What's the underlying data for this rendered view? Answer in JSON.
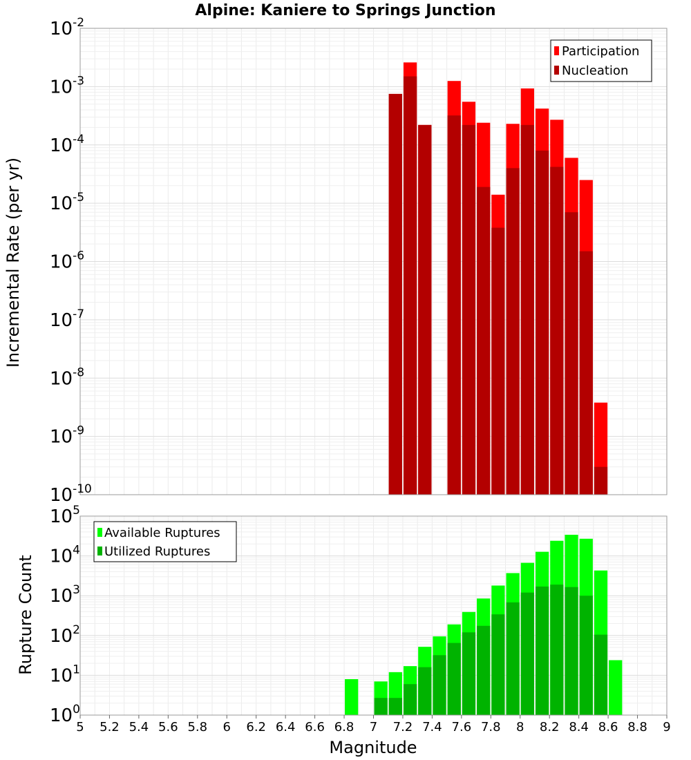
{
  "chart_data": [
    {
      "type": "bar",
      "title": "Alpine: Kaniere to Springs Junction",
      "ylabel": "Incremental Rate (per yr)",
      "yscale": "log",
      "ylim": [
        1e-10,
        0.01
      ],
      "xlim": [
        5,
        9
      ],
      "bin_width": 0.1,
      "y_ticks": [
        {
          "base": "10",
          "exp": "-10",
          "value": 1e-10
        },
        {
          "base": "10",
          "exp": "-9",
          "value": 1e-09
        },
        {
          "base": "10",
          "exp": "-8",
          "value": 1e-08
        },
        {
          "base": "10",
          "exp": "-7",
          "value": 1e-07
        },
        {
          "base": "10",
          "exp": "-6",
          "value": 1e-06
        },
        {
          "base": "10",
          "exp": "-5",
          "value": 1e-05
        },
        {
          "base": "10",
          "exp": "-4",
          "value": 0.0001
        },
        {
          "base": "10",
          "exp": "-3",
          "value": 0.001
        },
        {
          "base": "10",
          "exp": "-2",
          "value": 0.01
        }
      ],
      "legend_position": "top-right",
      "grid": true,
      "series": [
        {
          "name": "Participation",
          "color": "#ff0000",
          "x": [
            7.15,
            7.25,
            7.35,
            7.55,
            7.65,
            7.75,
            7.85,
            7.95,
            8.05,
            8.15,
            8.25,
            8.35,
            8.45,
            8.55
          ],
          "values": [
            0.00075,
            0.0026,
            0.00022,
            0.00125,
            0.00055,
            0.00024,
            1.4e-05,
            0.00023,
            0.00093,
            0.00042,
            0.00027,
            6e-05,
            2.5e-05,
            3.8e-09
          ]
        },
        {
          "name": "Nucleation",
          "color": "#b30000",
          "x": [
            7.15,
            7.25,
            7.35,
            7.55,
            7.65,
            7.75,
            7.85,
            7.95,
            8.05,
            8.15,
            8.25,
            8.35,
            8.45,
            8.55
          ],
          "values": [
            0.00075,
            0.0015,
            0.00022,
            0.00032,
            0.00022,
            1.9e-05,
            3.8e-06,
            4e-05,
            0.00022,
            8e-05,
            4.2e-05,
            7e-06,
            1.5e-06,
            3e-10
          ]
        }
      ]
    },
    {
      "type": "bar",
      "ylabel": "Rupture Count",
      "xlabel": "Magnitude",
      "yscale": "log",
      "ylim": [
        1,
        100000.0
      ],
      "xlim": [
        5,
        9
      ],
      "bin_width": 0.1,
      "x_ticks": [
        "5",
        "5.2",
        "5.4",
        "5.6",
        "5.8",
        "6",
        "6.2",
        "6.4",
        "6.6",
        "6.8",
        "7",
        "7.2",
        "7.4",
        "7.6",
        "7.8",
        "8",
        "8.2",
        "8.4",
        "8.6",
        "8.8",
        "9"
      ],
      "y_ticks": [
        {
          "base": "10",
          "exp": "0",
          "value": 1
        },
        {
          "base": "10",
          "exp": "1",
          "value": 10
        },
        {
          "base": "10",
          "exp": "2",
          "value": 100
        },
        {
          "base": "10",
          "exp": "3",
          "value": 1000
        },
        {
          "base": "10",
          "exp": "4",
          "value": 10000
        },
        {
          "base": "10",
          "exp": "5",
          "value": 100000
        }
      ],
      "legend_position": "top-left",
      "grid": true,
      "series": [
        {
          "name": "Available Ruptures",
          "color": "#00ff00",
          "x": [
            6.85,
            7.05,
            7.15,
            7.25,
            7.35,
            7.45,
            7.55,
            7.65,
            7.75,
            7.85,
            7.95,
            8.05,
            8.15,
            8.25,
            8.35,
            8.45,
            8.55,
            8.65
          ],
          "values": [
            8,
            7,
            12,
            17,
            52,
            95,
            190,
            390,
            850,
            1800,
            3700,
            6700,
            12700,
            24000,
            34000,
            27000,
            4300,
            24
          ]
        },
        {
          "name": "Utilized Ruptures",
          "color": "#00b300",
          "x": [
            7.05,
            7.15,
            7.25,
            7.35,
            7.45,
            7.55,
            7.65,
            7.75,
            7.85,
            7.95,
            8.05,
            8.15,
            8.25,
            8.35,
            8.45,
            8.55
          ],
          "values": [
            2.7,
            2.7,
            6,
            16,
            32,
            65,
            120,
            175,
            340,
            680,
            1200,
            1700,
            1900,
            1650,
            1000,
            105
          ]
        }
      ]
    }
  ]
}
